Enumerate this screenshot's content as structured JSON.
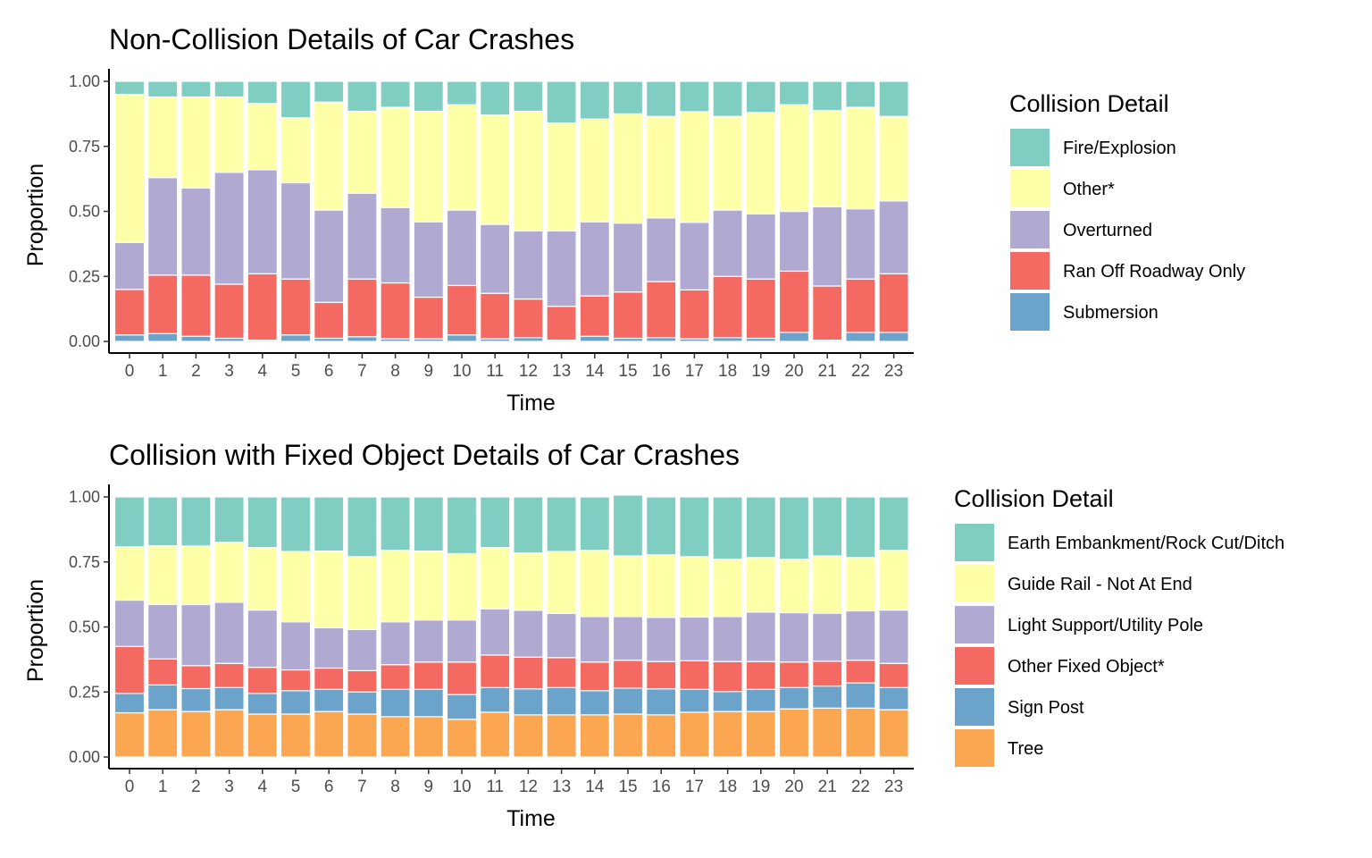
{
  "chart_data": [
    {
      "type": "bar",
      "stacked": true,
      "title": "Non-Collision Details of Car Crashes",
      "xlabel": "Time",
      "ylabel": "Proportion",
      "ylim": [
        0,
        1
      ],
      "yticks": [
        "0.00",
        "0.25",
        "0.50",
        "0.75",
        "1.00"
      ],
      "categories": [
        "0",
        "1",
        "2",
        "3",
        "4",
        "5",
        "6",
        "7",
        "8",
        "9",
        "10",
        "11",
        "12",
        "13",
        "14",
        "15",
        "16",
        "17",
        "18",
        "19",
        "20",
        "21",
        "22",
        "23"
      ],
      "legend": {
        "title": "Collision Detail",
        "position": "right"
      },
      "series": [
        {
          "name": "Submersion",
          "color": "#6BA3CA",
          "values": [
            0.025,
            0.03,
            0.02,
            0.012,
            0.005,
            0.025,
            0.012,
            0.018,
            0.01,
            0.01,
            0.025,
            0.01,
            0.015,
            0.005,
            0.02,
            0.012,
            0.015,
            0.01,
            0.015,
            0.012,
            0.035,
            0.005,
            0.035,
            0.035
          ]
        },
        {
          "name": "Ran Off Roadway Only",
          "color": "#F46A63",
          "values": [
            0.175,
            0.225,
            0.235,
            0.208,
            0.255,
            0.215,
            0.138,
            0.222,
            0.215,
            0.16,
            0.19,
            0.175,
            0.148,
            0.13,
            0.155,
            0.178,
            0.215,
            0.188,
            0.235,
            0.228,
            0.235,
            0.208,
            0.205,
            0.225
          ]
        },
        {
          "name": "Overturned",
          "color": "#B0A9D2",
          "values": [
            0.18,
            0.375,
            0.335,
            0.43,
            0.4,
            0.37,
            0.355,
            0.33,
            0.29,
            0.29,
            0.29,
            0.265,
            0.262,
            0.29,
            0.285,
            0.265,
            0.245,
            0.26,
            0.255,
            0.25,
            0.23,
            0.305,
            0.27,
            0.28
          ]
        },
        {
          "name": "Other*",
          "color": "#FFFFA8",
          "values": [
            0.57,
            0.31,
            0.35,
            0.29,
            0.255,
            0.25,
            0.415,
            0.315,
            0.385,
            0.425,
            0.405,
            0.42,
            0.46,
            0.415,
            0.395,
            0.42,
            0.39,
            0.425,
            0.36,
            0.39,
            0.41,
            0.37,
            0.39,
            0.325
          ]
        },
        {
          "name": "Fire/Explosion",
          "color": "#80CDC1",
          "values": [
            0.05,
            0.06,
            0.06,
            0.06,
            0.085,
            0.14,
            0.08,
            0.115,
            0.1,
            0.115,
            0.09,
            0.13,
            0.115,
            0.16,
            0.145,
            0.125,
            0.135,
            0.117,
            0.135,
            0.12,
            0.09,
            0.112,
            0.1,
            0.135
          ]
        }
      ]
    },
    {
      "type": "bar",
      "stacked": true,
      "title": "Collision with Fixed Object Details of Car Crashes",
      "xlabel": "Time",
      "ylabel": "Proportion",
      "ylim": [
        0,
        1
      ],
      "yticks": [
        "0.00",
        "0.25",
        "0.50",
        "0.75",
        "1.00"
      ],
      "categories": [
        "0",
        "1",
        "2",
        "3",
        "4",
        "5",
        "6",
        "7",
        "8",
        "9",
        "10",
        "11",
        "12",
        "13",
        "14",
        "15",
        "16",
        "17",
        "18",
        "19",
        "20",
        "21",
        "22",
        "23"
      ],
      "legend": {
        "title": "Collision Detail",
        "position": "right"
      },
      "series": [
        {
          "name": "Tree",
          "color": "#FBA651",
          "values": [
            0.17,
            0.182,
            0.175,
            0.182,
            0.165,
            0.165,
            0.175,
            0.165,
            0.155,
            0.155,
            0.145,
            0.172,
            0.162,
            0.162,
            0.162,
            0.165,
            0.162,
            0.172,
            0.175,
            0.175,
            0.185,
            0.188,
            0.188,
            0.182
          ]
        },
        {
          "name": "Sign Post",
          "color": "#6BA3CA",
          "values": [
            0.075,
            0.095,
            0.088,
            0.085,
            0.08,
            0.09,
            0.085,
            0.085,
            0.105,
            0.105,
            0.095,
            0.095,
            0.1,
            0.105,
            0.093,
            0.1,
            0.1,
            0.088,
            0.077,
            0.085,
            0.082,
            0.085,
            0.097,
            0.085
          ]
        },
        {
          "name": "Other Fixed Object*",
          "color": "#F46A63",
          "values": [
            0.18,
            0.1,
            0.088,
            0.093,
            0.1,
            0.08,
            0.082,
            0.082,
            0.095,
            0.105,
            0.125,
            0.125,
            0.122,
            0.115,
            0.11,
            0.107,
            0.105,
            0.11,
            0.115,
            0.107,
            0.098,
            0.095,
            0.087,
            0.093
          ]
        },
        {
          "name": "Light Support/Utility Pole",
          "color": "#B0A9D2",
          "values": [
            0.178,
            0.21,
            0.235,
            0.235,
            0.22,
            0.185,
            0.155,
            0.158,
            0.165,
            0.162,
            0.162,
            0.178,
            0.18,
            0.17,
            0.175,
            0.168,
            0.17,
            0.168,
            0.173,
            0.19,
            0.19,
            0.185,
            0.19,
            0.205
          ]
        },
        {
          "name": "Guide Rail - Not At End",
          "color": "#FFFFA8",
          "values": [
            0.205,
            0.225,
            0.225,
            0.23,
            0.24,
            0.27,
            0.295,
            0.28,
            0.275,
            0.265,
            0.255,
            0.235,
            0.22,
            0.238,
            0.255,
            0.233,
            0.24,
            0.232,
            0.22,
            0.21,
            0.205,
            0.22,
            0.205,
            0.23
          ]
        },
        {
          "name": "Earth Embankment/Rock Cut/Ditch",
          "color": "#80CDC1",
          "values": [
            0.192,
            0.188,
            0.189,
            0.175,
            0.195,
            0.21,
            0.208,
            0.23,
            0.205,
            0.208,
            0.218,
            0.195,
            0.216,
            0.21,
            0.205,
            0.234,
            0.223,
            0.23,
            0.24,
            0.233,
            0.24,
            0.227,
            0.233,
            0.205
          ]
        }
      ]
    }
  ]
}
